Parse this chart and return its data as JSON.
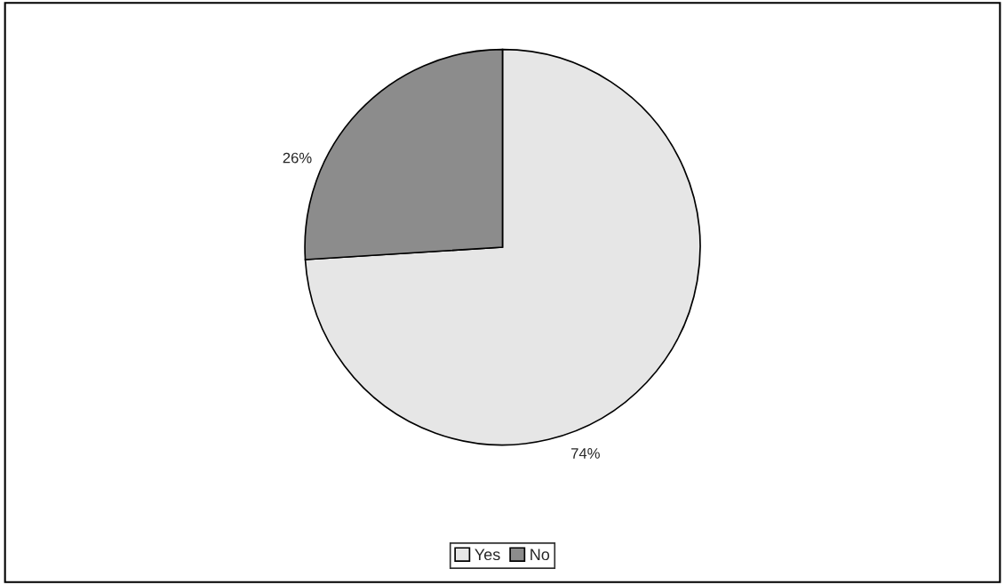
{
  "chart_data": {
    "type": "pie",
    "categories": [
      "Yes",
      "No"
    ],
    "values": [
      74,
      26
    ],
    "colors": [
      "#e6e6e6",
      "#8c8c8c"
    ],
    "value_labels": [
      "74%",
      "26%"
    ],
    "legend": "bottom"
  }
}
